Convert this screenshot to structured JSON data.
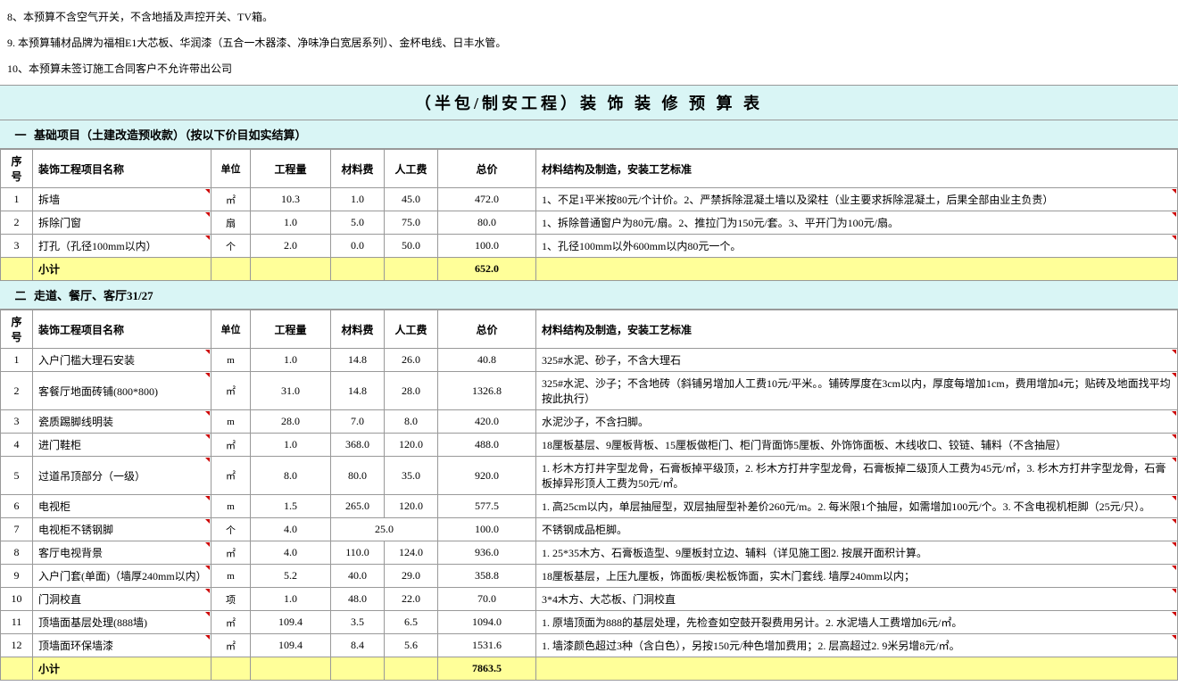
{
  "notes": [
    "8、本预算不含空气开关，不含地插及声控开关、TV箱。",
    "9. 本预算辅材品牌为福相E1大芯板、华润漆（五合一木器漆、净味净白宽居系列）、金杯电线、日丰水管。",
    "10、本预算未签订施工合同客户不允许带出公司"
  ],
  "title": "（半包/制安工程）装 饰 装 修 预 算 表",
  "headers": {
    "seq": "序号",
    "name": "装饰工程项目名称",
    "unit": "单位",
    "qty": "工程量",
    "mat": "材料费",
    "lab": "人工费",
    "total": "总价",
    "desc": "材料结构及制造，安装工艺标准"
  },
  "subtotal_label": "小计",
  "section1": {
    "num": "一",
    "title": "基础项目（土建改造预收款）（按以下价目如实结算）",
    "rows": [
      {
        "seq": "1",
        "name": "拆墙",
        "unit": "㎡",
        "qty": "10.3",
        "mat": "1.0",
        "lab": "45.0",
        "total": "472.0",
        "desc": "1、不足1平米按80元/个计价。2、严禁拆除混凝土墙以及梁柱（业主要求拆除混凝土，后果全部由业主负责）"
      },
      {
        "seq": "2",
        "name": "拆除门窗",
        "unit": "扇",
        "qty": "1.0",
        "mat": "5.0",
        "lab": "75.0",
        "total": "80.0",
        "desc": "1、拆除普通窗户为80元/扇。2、推拉门为150元/套。3、平开门为100元/扇。"
      },
      {
        "seq": "3",
        "name": "打孔（孔径100mm以内）",
        "unit": "个",
        "qty": "2.0",
        "mat": "0.0",
        "lab": "50.0",
        "total": "100.0",
        "desc": "1、孔径100mm以外600mm以内80元一个。"
      }
    ],
    "subtotal": "652.0"
  },
  "section2": {
    "num": "二",
    "title": "走道、餐厅、客厅31/27",
    "rows": [
      {
        "seq": "1",
        "name": "入户门槛大理石安装",
        "unit": "m",
        "qty": "1.0",
        "mat": "14.8",
        "lab": "26.0",
        "total": "40.8",
        "desc": "325#水泥、砂子，不含大理石"
      },
      {
        "seq": "2",
        "name": "客餐厅地面砖铺(800*800)",
        "unit": "㎡",
        "qty": "31.0",
        "mat": "14.8",
        "lab": "28.0",
        "total": "1326.8",
        "desc": "325#水泥、沙子；不含地砖（斜铺另增加人工费10元/平米。。铺砖厚度在3cm以内，厚度每增加1cm，费用增加4元；贴砖及地面找平均按此执行）"
      },
      {
        "seq": "3",
        "name": "瓷质踢脚线明装",
        "unit": "m",
        "qty": "28.0",
        "mat": "7.0",
        "lab": "8.0",
        "total": "420.0",
        "desc": "水泥沙子，不含扫脚。"
      },
      {
        "seq": "4",
        "name": "进门鞋柜",
        "unit": "㎡",
        "qty": "1.0",
        "mat": "368.0",
        "lab": "120.0",
        "total": "488.0",
        "desc": "18厘板基层、9厘板背板、15厘板做柜门、柜门背面饰5厘板、外饰饰面板、木线收口、铰链、辅料（不含抽屉）"
      },
      {
        "seq": "5",
        "name": "过道吊顶部分（一级）",
        "unit": "㎡",
        "qty": "8.0",
        "mat": "80.0",
        "lab": "35.0",
        "total": "920.0",
        "desc": "1. 杉木方打井字型龙骨，石膏板掉平级顶，2. 杉木方打井字型龙骨，石膏板掉二级顶人工费为45元/㎡，3. 杉木方打井字型龙骨，石膏板掉异形顶人工费为50元/㎡。"
      },
      {
        "seq": "6",
        "name": "电视柜",
        "unit": "m",
        "qty": "1.5",
        "mat": "265.0",
        "lab": "120.0",
        "total": "577.5",
        "desc": "1. 高25cm以内，单层抽屉型，双层抽屉型补差价260元/m。2. 每米限1个抽屉，如需增加100元/个。3. 不含电视机柜脚（25元/只）。"
      },
      {
        "seq": "7",
        "name": "电视柜不锈钢脚",
        "unit": "个",
        "qty": "4.0",
        "mat": "",
        "lab": "25.0",
        "total": "100.0",
        "desc": "不锈钢成品柜脚。",
        "merged": true
      },
      {
        "seq": "8",
        "name": "客厅电视背景",
        "unit": "㎡",
        "qty": "4.0",
        "mat": "110.0",
        "lab": "124.0",
        "total": "936.0",
        "desc": "1. 25*35木方、石膏板造型、9厘板封立边、辅料（详见施工图2. 按展开面积计算。"
      },
      {
        "seq": "9",
        "name": "入户门套(单面)（墙厚240mm以内）",
        "unit": "m",
        "qty": "5.2",
        "mat": "40.0",
        "lab": "29.0",
        "total": "358.8",
        "desc": "18厘板基层，上压九厘板，饰面板/奥松板饰面，实木门套线. 墙厚240mm以内；"
      },
      {
        "seq": "10",
        "name": "门洞校直",
        "unit": "项",
        "qty": "1.0",
        "mat": "48.0",
        "lab": "22.0",
        "total": "70.0",
        "desc": "3*4木方、大芯板、门洞校直"
      },
      {
        "seq": "11",
        "name": "顶墙面基层处理(888墙)",
        "unit": "㎡",
        "qty": "109.4",
        "mat": "3.5",
        "lab": "6.5",
        "total": "1094.0",
        "desc": "1. 原墙顶面为888的基层处理，先检查如空鼓开裂费用另计。2. 水泥墙人工费增加6元/㎡。"
      },
      {
        "seq": "12",
        "name": "顶墙面环保墙漆",
        "unit": "㎡",
        "qty": "109.4",
        "mat": "8.4",
        "lab": "5.6",
        "total": "1531.6",
        "desc": "1. 墙漆颜色超过3种（含白色），另按150元/种色增加费用；2. 层高超过2. 9米另增8元/㎡。"
      }
    ],
    "subtotal": "7863.5"
  }
}
